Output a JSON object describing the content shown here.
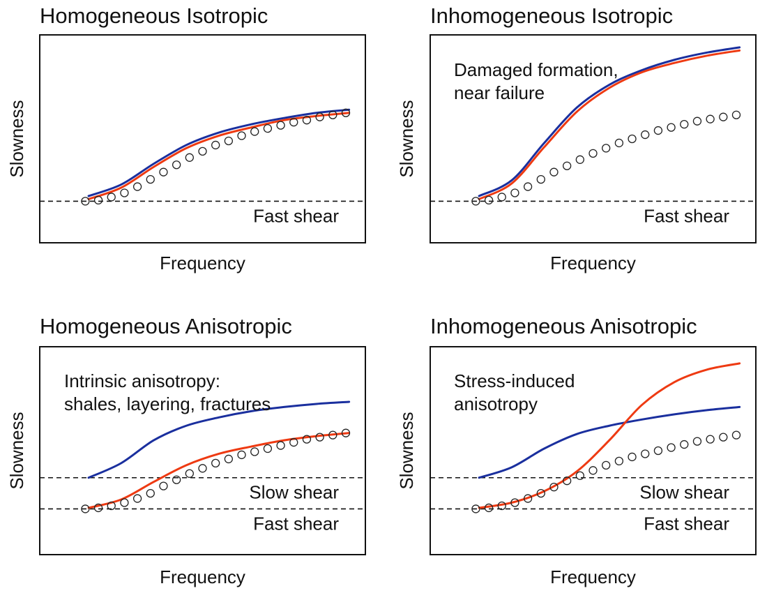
{
  "chart_data": [
    {
      "type": "line",
      "title": "Homogeneous Isotropic",
      "xlabel": "Frequency",
      "ylabel": "Slowness",
      "xlim": [
        0,
        100
      ],
      "ylim": [
        0,
        100
      ],
      "annotation": [],
      "reference_lines": [
        {
          "label": "Fast shear",
          "y": 20
        }
      ],
      "series": [
        {
          "name": "blue curve",
          "color": "#1a2f9e",
          "x": [
            15,
            25,
            35,
            45,
            55,
            65,
            75,
            85,
            95
          ],
          "y": [
            22.5,
            28,
            38,
            47,
            53,
            57,
            60,
            62.5,
            64
          ]
        },
        {
          "name": "red curve",
          "color": "#ee3a12",
          "x": [
            15,
            25,
            35,
            45,
            55,
            65,
            75,
            85,
            95
          ],
          "y": [
            21,
            26.5,
            36.5,
            45.5,
            51.5,
            55.5,
            59,
            61,
            62.5
          ]
        },
        {
          "name": "circles",
          "color": "#222222",
          "x": [
            14,
            18,
            22,
            26,
            30,
            34,
            38,
            42,
            46,
            50,
            54,
            58,
            62,
            66,
            70,
            74,
            78,
            82,
            86,
            90,
            94
          ],
          "y": [
            20,
            20.5,
            22,
            24,
            27,
            30.5,
            34,
            37.5,
            41,
            44,
            47,
            49,
            51.5,
            53.5,
            55,
            56.5,
            58,
            59,
            60.5,
            61.5,
            62.5
          ]
        }
      ]
    },
    {
      "type": "line",
      "title": "Inhomogeneous Isotropic",
      "xlabel": "Frequency",
      "ylabel": "Slowness",
      "xlim": [
        0,
        100
      ],
      "ylim": [
        0,
        100
      ],
      "annotation": [
        "Damaged formation,",
        "near failure"
      ],
      "reference_lines": [
        {
          "label": "Fast shear",
          "y": 20
        }
      ],
      "series": [
        {
          "name": "blue curve",
          "color": "#1a2f9e",
          "x": [
            15,
            25,
            35,
            45,
            55,
            65,
            75,
            85,
            95
          ],
          "y": [
            22.5,
            30,
            48,
            65,
            76,
            83,
            88,
            91.5,
            94
          ]
        },
        {
          "name": "red curve",
          "color": "#ee3a12",
          "x": [
            15,
            25,
            35,
            45,
            55,
            65,
            75,
            85,
            95
          ],
          "y": [
            21,
            28.5,
            46,
            63,
            74.5,
            82,
            86.5,
            90,
            92.5
          ]
        },
        {
          "name": "circles",
          "color": "#222222",
          "x": [
            14,
            18,
            22,
            26,
            30,
            34,
            38,
            42,
            46,
            50,
            54,
            58,
            62,
            66,
            70,
            74,
            78,
            82,
            86,
            90,
            94
          ],
          "y": [
            20,
            20.5,
            22,
            24,
            27,
            30.5,
            34,
            37,
            40,
            43,
            45.5,
            48,
            50,
            52,
            54,
            55.5,
            57,
            58.5,
            59.5,
            60.5,
            61.5
          ]
        }
      ]
    },
    {
      "type": "line",
      "title": "Homogeneous Anisotropic",
      "xlabel": "Frequency",
      "ylabel": "Slowness",
      "xlim": [
        0,
        100
      ],
      "ylim": [
        0,
        100
      ],
      "annotation": [
        "Intrinsic anisotropy:",
        "shales, layering, fractures"
      ],
      "reference_lines": [
        {
          "label": "Slow shear",
          "y": 37
        },
        {
          "label": "Fast shear",
          "y": 22
        }
      ],
      "series": [
        {
          "name": "blue curve",
          "color": "#1a2f9e",
          "x": [
            15,
            25,
            35,
            45,
            55,
            65,
            75,
            85,
            95
          ],
          "y": [
            37,
            44,
            55,
            62,
            66,
            69,
            71,
            72.5,
            73.5
          ]
        },
        {
          "name": "red curve",
          "color": "#ee3a12",
          "x": [
            15,
            25,
            35,
            45,
            55,
            65,
            75,
            85,
            95
          ],
          "y": [
            22.5,
            26.5,
            35,
            43,
            48.5,
            52,
            55,
            57,
            58.5
          ]
        },
        {
          "name": "circles",
          "color": "#222222",
          "x": [
            14,
            18,
            22,
            26,
            30,
            34,
            38,
            42,
            46,
            50,
            54,
            58,
            62,
            66,
            70,
            74,
            78,
            82,
            86,
            90,
            94
          ],
          "y": [
            22,
            22.5,
            23.5,
            25,
            27,
            29.5,
            33,
            36,
            39,
            41.5,
            44,
            46,
            48,
            49.5,
            51,
            52.5,
            54,
            55.5,
            56.5,
            57.5,
            58.5
          ]
        }
      ]
    },
    {
      "type": "line",
      "title": "Inhomogeneous Anisotropic",
      "xlabel": "Frequency",
      "ylabel": "Slowness",
      "xlim": [
        0,
        100
      ],
      "ylim": [
        0,
        100
      ],
      "annotation": [
        "Stress-induced",
        "anisotropy"
      ],
      "reference_lines": [
        {
          "label": "Slow shear",
          "y": 37
        },
        {
          "label": "Fast shear",
          "y": 22
        }
      ],
      "series": [
        {
          "name": "blue curve",
          "color": "#1a2f9e",
          "x": [
            15,
            25,
            35,
            45,
            55,
            65,
            75,
            85,
            95
          ],
          "y": [
            37,
            42,
            51,
            58,
            62,
            65,
            67.5,
            69.5,
            71
          ]
        },
        {
          "name": "red curve",
          "color": "#ee3a12",
          "x": [
            15,
            25,
            35,
            45,
            55,
            65,
            75,
            85,
            95
          ],
          "y": [
            22.5,
            25,
            30.5,
            40,
            55,
            72,
            83,
            89,
            92
          ]
        },
        {
          "name": "circles",
          "color": "#222222",
          "x": [
            14,
            18,
            22,
            26,
            30,
            34,
            38,
            42,
            46,
            50,
            54,
            58,
            62,
            66,
            70,
            74,
            78,
            82,
            86,
            90,
            94
          ],
          "y": [
            22,
            22.5,
            23.5,
            25,
            27,
            29.5,
            32.5,
            35.5,
            38,
            40.5,
            43,
            45,
            47,
            48.5,
            50,
            51.5,
            53,
            54.5,
            55.5,
            56.5,
            57.5
          ]
        }
      ]
    }
  ]
}
